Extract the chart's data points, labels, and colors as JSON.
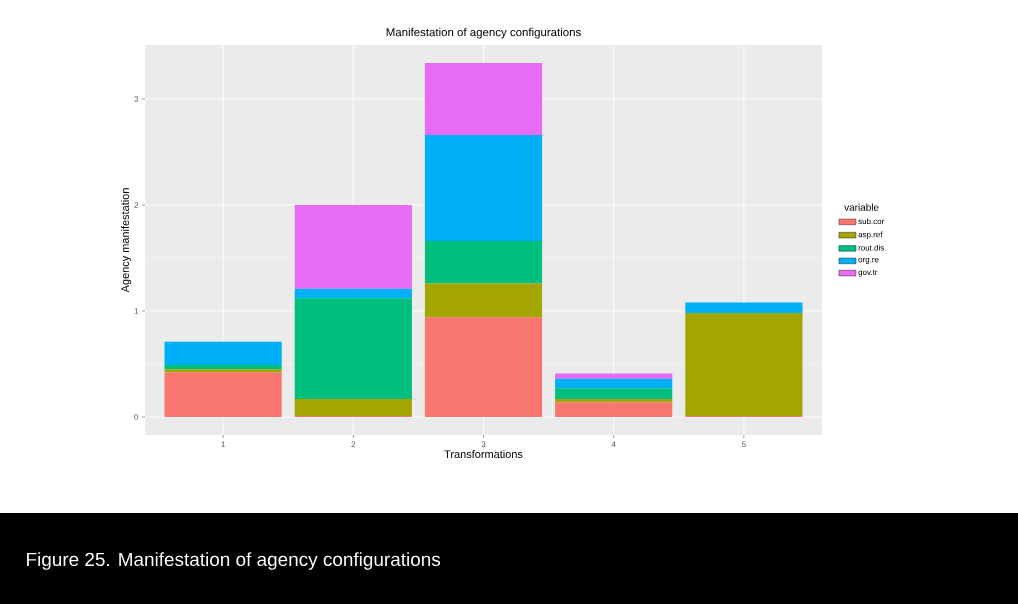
{
  "chart_data": {
    "type": "bar",
    "stacked": true,
    "title": "Manifestation of agency configurations",
    "xlabel": "Transformations",
    "ylabel": "Agency manifestation",
    "legend_title": "variable",
    "categories": [
      "1",
      "2",
      "3",
      "4",
      "5"
    ],
    "series": [
      {
        "name": "sub.cor",
        "color": "#f8766d",
        "values": [
          0.42,
          0.01,
          0.94,
          0.14,
          0.01
        ]
      },
      {
        "name": "asp.ref",
        "color": "#a3a500",
        "values": [
          0.03,
          0.16,
          0.32,
          0.03,
          0.97
        ]
      },
      {
        "name": "rout.dis",
        "color": "#00bf7d",
        "values": [
          0.04,
          0.95,
          0.4,
          0.1,
          0
        ]
      },
      {
        "name": "org.re",
        "color": "#00b0f6",
        "values": [
          0.22,
          0.09,
          1.0,
          0.09,
          0.1
        ]
      },
      {
        "name": "gov.tr",
        "color": "#e76bf3",
        "values": [
          0,
          0.79,
          0.68,
          0.05,
          0
        ]
      }
    ],
    "ylim": [
      -0.17,
      3.51
    ],
    "yticks": [
      0,
      1,
      2,
      3
    ],
    "grid": true,
    "legend": "right",
    "annotations": [
      "Figure 25. Manifestation of agency configurations"
    ]
  }
}
